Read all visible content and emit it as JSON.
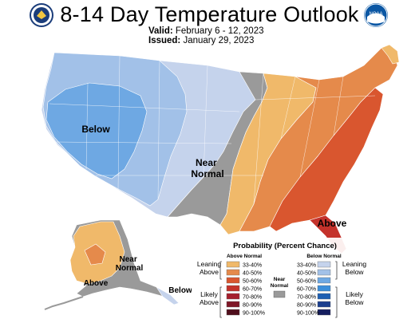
{
  "header": {
    "title": "8-14 Day Temperature Outlook",
    "valid_label": "Valid:",
    "valid_value": "February 6 - 12, 2023",
    "issued_label": "Issued:",
    "issued_value": "January 29, 2023"
  },
  "logos": {
    "left": "seal-icon",
    "right": "noaa-logo-icon",
    "right_text": "NOAA"
  },
  "map_labels": {
    "below_west": "Below",
    "near_normal_central": "Near\nNormal",
    "above_southeast": "Above",
    "near_normal_alaska": "Near\nNormal",
    "above_alaska": "Above",
    "below_alaska": "Below"
  },
  "legend": {
    "title": "Probability (Percent Chance)",
    "above_header": "Above Normal",
    "below_header": "Below Normal",
    "near_header": "Near\nNormal",
    "leaning_above": "Leaning\nAbove",
    "likely_above": "Likely\nAbove",
    "leaning_below": "Leaning\nBelow",
    "likely_below": "Likely\nBelow",
    "above_bins": [
      {
        "label": "33-40%",
        "color": "#f0b96a"
      },
      {
        "label": "40-50%",
        "color": "#e58a4b"
      },
      {
        "label": "50-60%",
        "color": "#d9562f"
      },
      {
        "label": "60-70%",
        "color": "#c4322b"
      },
      {
        "label": "70-80%",
        "color": "#a51f2d"
      },
      {
        "label": "80-90%",
        "color": "#7f1727"
      },
      {
        "label": "90-100%",
        "color": "#4f0e1c"
      }
    ],
    "below_bins": [
      {
        "label": "33-40%",
        "color": "#c5d3ec"
      },
      {
        "label": "40-50%",
        "color": "#a2c1e8"
      },
      {
        "label": "50-60%",
        "color": "#6ea8e3"
      },
      {
        "label": "60-70%",
        "color": "#3b8fdb"
      },
      {
        "label": "70-80%",
        "color": "#1e5fb2"
      },
      {
        "label": "80-90%",
        "color": "#1b3f8f"
      },
      {
        "label": "90-100%",
        "color": "#151e5f"
      }
    ],
    "near_color": "#9a9a9a"
  }
}
